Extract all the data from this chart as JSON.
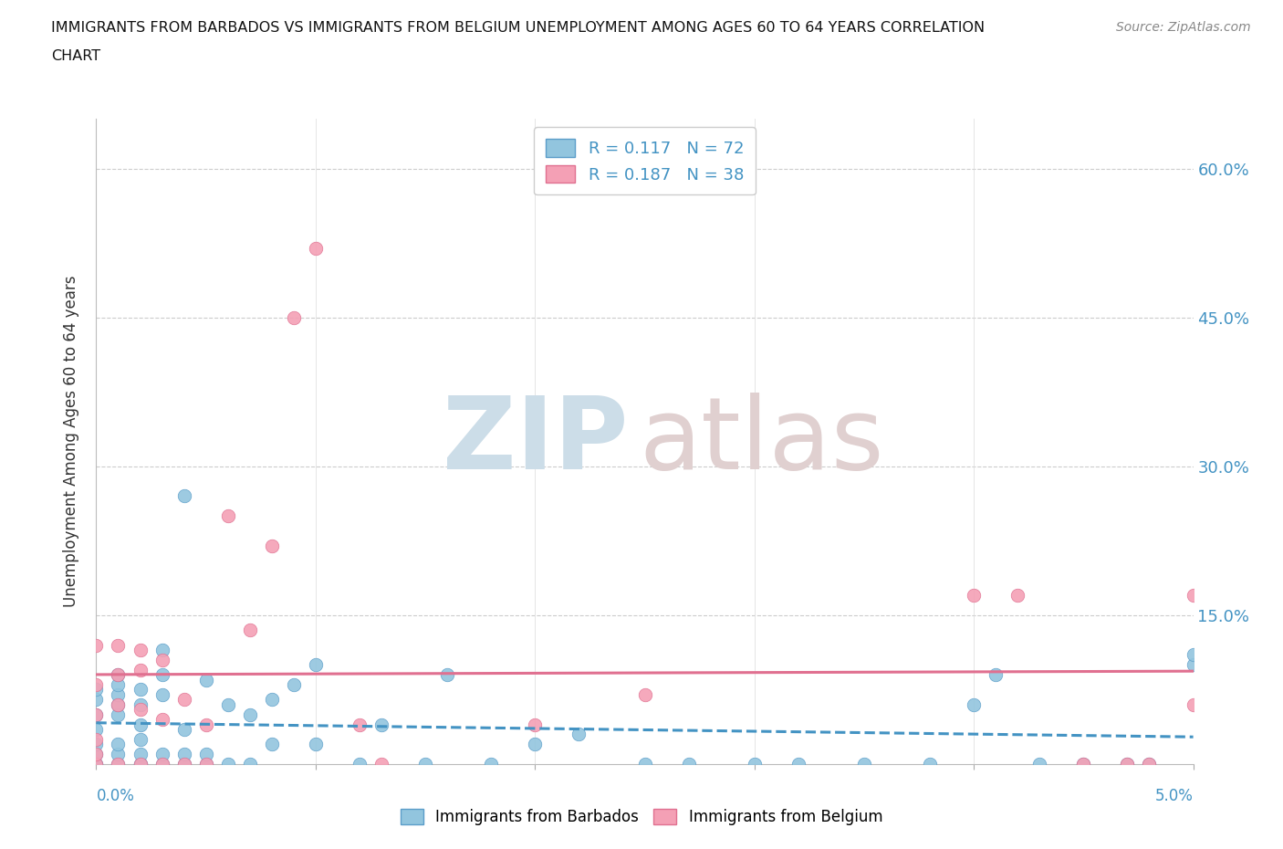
{
  "title_line1": "IMMIGRANTS FROM BARBADOS VS IMMIGRANTS FROM BELGIUM UNEMPLOYMENT AMONG AGES 60 TO 64 YEARS CORRELATION",
  "title_line2": "CHART",
  "source_text": "Source: ZipAtlas.com",
  "ylabel": "Unemployment Among Ages 60 to 64 years",
  "xlim": [
    0.0,
    0.05
  ],
  "ylim": [
    0.0,
    0.65
  ],
  "yticks": [
    0.0,
    0.15,
    0.3,
    0.45,
    0.6
  ],
  "ytick_labels": [
    "",
    "15.0%",
    "30.0%",
    "45.0%",
    "60.0%"
  ],
  "color_barbados": "#92c5de",
  "color_belgium": "#f4a0b5",
  "edge_barbados": "#5b9dc9",
  "edge_belgium": "#e07090",
  "trendline_barbados_color": "#4393c3",
  "trendline_belgium_color": "#e07090",
  "barbados_x": [
    0.0,
    0.0,
    0.0,
    0.0,
    0.0,
    0.0,
    0.0,
    0.0,
    0.001,
    0.001,
    0.001,
    0.001,
    0.001,
    0.001,
    0.001,
    0.001,
    0.002,
    0.002,
    0.002,
    0.002,
    0.002,
    0.002,
    0.002,
    0.003,
    0.003,
    0.003,
    0.003,
    0.003,
    0.004,
    0.004,
    0.004,
    0.004,
    0.005,
    0.005,
    0.005,
    0.006,
    0.006,
    0.007,
    0.007,
    0.008,
    0.008,
    0.009,
    0.01,
    0.01,
    0.012,
    0.013,
    0.015,
    0.016,
    0.018,
    0.02,
    0.022,
    0.025,
    0.027,
    0.03,
    0.032,
    0.035,
    0.038,
    0.04,
    0.041,
    0.043,
    0.045,
    0.047,
    0.048,
    0.05,
    0.05
  ],
  "barbados_y": [
    0.0,
    0.0,
    0.01,
    0.02,
    0.035,
    0.05,
    0.065,
    0.075,
    0.0,
    0.01,
    0.02,
    0.05,
    0.06,
    0.07,
    0.08,
    0.09,
    0.0,
    0.0,
    0.01,
    0.025,
    0.04,
    0.06,
    0.075,
    0.0,
    0.01,
    0.07,
    0.09,
    0.115,
    0.0,
    0.01,
    0.035,
    0.27,
    0.0,
    0.01,
    0.085,
    0.0,
    0.06,
    0.0,
    0.05,
    0.02,
    0.065,
    0.08,
    0.02,
    0.1,
    0.0,
    0.04,
    0.0,
    0.09,
    0.0,
    0.02,
    0.03,
    0.0,
    0.0,
    0.0,
    0.0,
    0.0,
    0.0,
    0.06,
    0.09,
    0.0,
    0.0,
    0.0,
    0.0,
    0.1,
    0.11
  ],
  "belgium_x": [
    0.0,
    0.0,
    0.0,
    0.0,
    0.0,
    0.0,
    0.001,
    0.001,
    0.001,
    0.001,
    0.002,
    0.002,
    0.002,
    0.002,
    0.003,
    0.003,
    0.003,
    0.004,
    0.004,
    0.005,
    0.005,
    0.006,
    0.007,
    0.008,
    0.009,
    0.01,
    0.012,
    0.013,
    0.02,
    0.025,
    0.04,
    0.042,
    0.045,
    0.047,
    0.048,
    0.05,
    0.05
  ],
  "belgium_y": [
    0.0,
    0.01,
    0.025,
    0.05,
    0.08,
    0.12,
    0.0,
    0.06,
    0.09,
    0.12,
    0.0,
    0.055,
    0.095,
    0.115,
    0.0,
    0.045,
    0.105,
    0.0,
    0.065,
    0.0,
    0.04,
    0.25,
    0.135,
    0.22,
    0.45,
    0.52,
    0.04,
    0.0,
    0.04,
    0.07,
    0.17,
    0.17,
    0.0,
    0.0,
    0.0,
    0.17,
    0.06
  ],
  "background_color": "#ffffff",
  "watermark_zip_color": "#ccdde8",
  "watermark_atlas_color": "#e0d0d0"
}
